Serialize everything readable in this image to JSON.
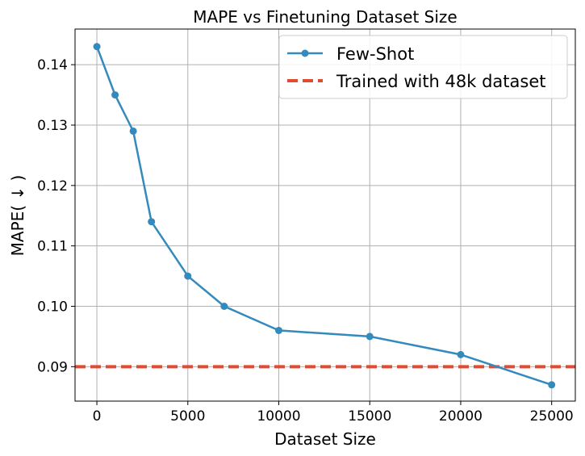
{
  "chart_data": {
    "type": "line",
    "title": "MAPE vs Finetuning Dataset Size",
    "xlabel": "Dataset Size",
    "ylabel": "MAPE( ↓ )",
    "xlim": [
      -1200,
      26300
    ],
    "ylim": [
      0.0843,
      0.1459
    ],
    "xticks": [
      0,
      5000,
      10000,
      15000,
      20000,
      25000
    ],
    "yticks": [
      0.09,
      0.1,
      0.11,
      0.12,
      0.13,
      0.14
    ],
    "ytick_labels": [
      "0.09",
      "0.10",
      "0.11",
      "0.12",
      "0.13",
      "0.14"
    ],
    "grid": true,
    "legend_position": "top-right",
    "series": [
      {
        "name": "Few-Shot",
        "color": "#348abd",
        "marker": "circle",
        "x": [
          0,
          1000,
          2000,
          3000,
          5000,
          7000,
          10000,
          15000,
          20000,
          25000
        ],
        "y": [
          0.143,
          0.135,
          0.129,
          0.114,
          0.105,
          0.1,
          0.096,
          0.095,
          0.092,
          0.087
        ]
      }
    ],
    "reference_lines": [
      {
        "name": "Trained with 48k dataset",
        "color": "#e24a33",
        "style": "dashed",
        "y": 0.09
      }
    ]
  }
}
